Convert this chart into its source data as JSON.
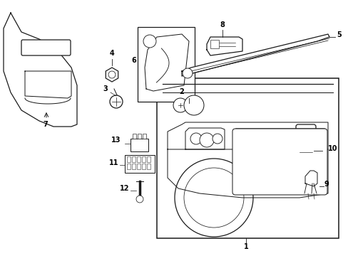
{
  "background_color": "#ffffff",
  "line_color": "#1a1a1a",
  "text_color": "#000000",
  "fig_width": 4.89,
  "fig_height": 3.6,
  "dpi": 100,
  "outer_trim": {
    "x": [
      0.03,
      0.01,
      0.01,
      0.03,
      0.06,
      0.12,
      0.17,
      0.21,
      0.23,
      0.25,
      0.25,
      0.23,
      0.19,
      0.12,
      0.06,
      0.03
    ],
    "y": [
      0.95,
      0.9,
      0.72,
      0.62,
      0.56,
      0.52,
      0.51,
      0.52,
      0.56,
      0.62,
      0.8,
      0.84,
      0.87,
      0.88,
      0.88,
      0.95
    ]
  },
  "handle_cutout": {
    "x": [
      0.07,
      0.07,
      0.17,
      0.19,
      0.19,
      0.17,
      0.07
    ],
    "y": [
      0.8,
      0.75,
      0.75,
      0.77,
      0.79,
      0.8,
      0.8
    ]
  },
  "lower_pocket": {
    "x": [
      0.07,
      0.07,
      0.2,
      0.22,
      0.22,
      0.2,
      0.07
    ],
    "y": [
      0.7,
      0.62,
      0.62,
      0.64,
      0.68,
      0.7,
      0.7
    ]
  }
}
